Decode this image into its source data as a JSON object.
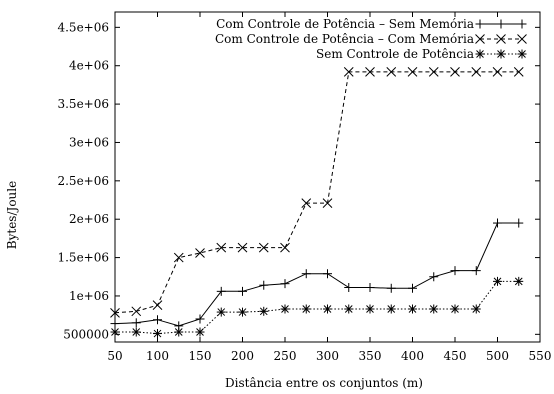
{
  "chart_data": {
    "type": "line",
    "xlabel": "Distância entre os conjuntos (m)",
    "ylabel": "Bytes/Joule",
    "xlim": [
      50,
      550
    ],
    "ylim": [
      400000,
      4700000
    ],
    "xticks": [
      50,
      100,
      150,
      200,
      250,
      300,
      350,
      400,
      450,
      500,
      550
    ],
    "xtick_labels": [
      "50",
      "100",
      "150",
      "200",
      "250",
      "300",
      "350",
      "400",
      "450",
      "500",
      "550"
    ],
    "yticks": [
      500000,
      1000000,
      1500000,
      2000000,
      2500000,
      3000000,
      3500000,
      4000000,
      4500000
    ],
    "ytick_labels": [
      "500000",
      "1e+06",
      "1.5e+06",
      "2e+06",
      "2.5e+06",
      "3e+06",
      "3.5e+06",
      "4e+06",
      "4.5e+06"
    ],
    "grid": false,
    "legend_position": "top-right",
    "x": [
      50,
      75,
      100,
      125,
      150,
      175,
      200,
      225,
      250,
      275,
      300,
      325,
      350,
      375,
      400,
      425,
      450,
      475,
      500,
      525
    ],
    "series": [
      {
        "name": "Com Controle de Potência – Sem Memória",
        "marker": "plus",
        "dash": "solid",
        "values": [
          640000,
          650000,
          690000,
          610000,
          700000,
          1060000,
          1060000,
          1140000,
          1160000,
          1290000,
          1290000,
          1110000,
          1110000,
          1100000,
          1100000,
          1250000,
          1330000,
          1330000,
          1950000,
          1950000
        ]
      },
      {
        "name": "Com Controle de Potência – Com Memória",
        "marker": "x",
        "dash": "dashed",
        "values": [
          780000,
          800000,
          880000,
          1500000,
          1560000,
          1630000,
          1630000,
          1630000,
          1630000,
          2210000,
          2210000,
          3920000,
          3920000,
          3920000,
          3920000,
          3920000,
          3920000,
          3920000,
          3920000,
          3920000
        ]
      },
      {
        "name": "Sem Controle de Potência",
        "marker": "star",
        "dash": "dotted",
        "values": [
          530000,
          530000,
          510000,
          530000,
          530000,
          790000,
          790000,
          800000,
          830000,
          830000,
          830000,
          830000,
          830000,
          830000,
          830000,
          830000,
          830000,
          830000,
          1190000,
          1190000
        ]
      }
    ]
  }
}
